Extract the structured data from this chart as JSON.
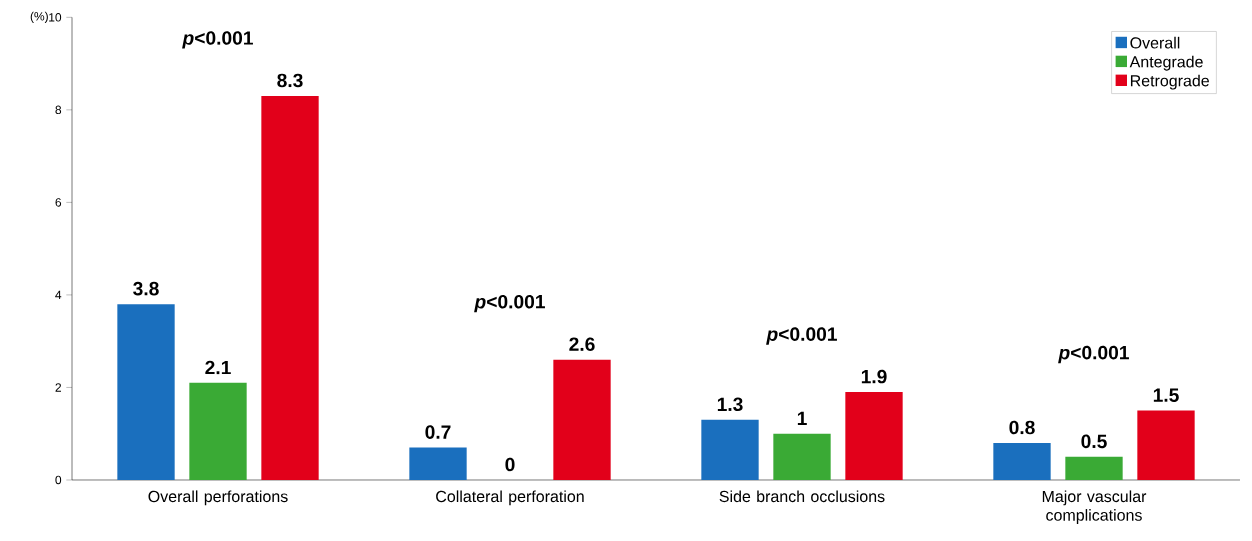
{
  "chart_data": {
    "type": "bar",
    "ylabel": "(%)",
    "categories": [
      "Overall perforations",
      "Collateral perforation",
      "Side branch occlusions",
      "Major vascular complications"
    ],
    "series": [
      {
        "name": "Overall",
        "color": "#1a6fbe",
        "values": [
          3.8,
          0.7,
          1.3,
          0.8
        ]
      },
      {
        "name": "Antegrade",
        "color": "#3aaa35",
        "values": [
          2.1,
          0,
          1,
          0.5
        ]
      },
      {
        "name": "Retrograde",
        "color": "#e2001a",
        "values": [
          8.3,
          2.6,
          1.9,
          1.5
        ]
      }
    ],
    "ylim": [
      0,
      10
    ],
    "yticks": [
      0,
      2,
      4,
      6,
      8,
      10
    ],
    "grid": false,
    "legend": "top right",
    "data_labels": true,
    "annotations": [
      "*p*<0.001",
      "*p*<0.001",
      "*p*<0.001",
      "*p*<0.001"
    ]
  }
}
